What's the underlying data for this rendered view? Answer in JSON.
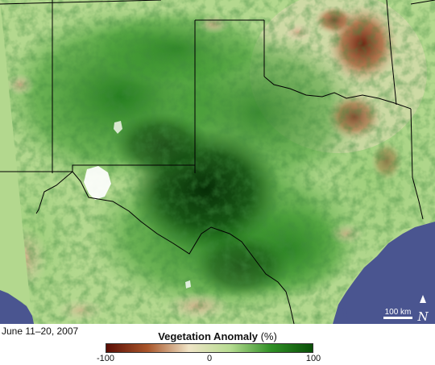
{
  "map": {
    "date_caption": "June 11–20, 2007",
    "scale_bar_label": "100 km",
    "north_symbol": "↑ N"
  },
  "legend": {
    "title": "Vegetation Anomaly",
    "unit": "(%)",
    "ticks": [
      "-100",
      "0",
      "100"
    ],
    "colors": [
      "#5a0d05",
      "#a8552a",
      "#efe4c6",
      "#b7dc92",
      "#2f8f25",
      "#0a4f08"
    ]
  },
  "colors": {
    "water": "#4a5590",
    "border": "#000000",
    "snow": "#ffffff"
  }
}
